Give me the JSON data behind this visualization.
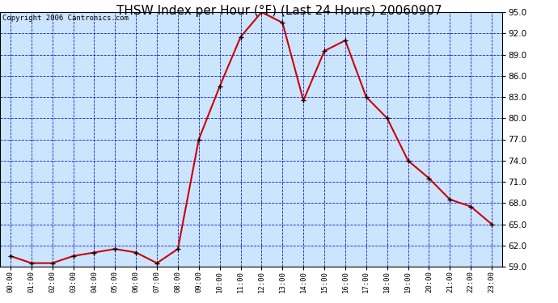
{
  "title": "THSW Index per Hour (°F) (Last 24 Hours) 20060907",
  "copyright": "Copyright 2006 Cantronics.com",
  "x_labels": [
    "00:00",
    "01:00",
    "02:00",
    "03:00",
    "04:00",
    "05:00",
    "06:00",
    "07:00",
    "08:00",
    "09:00",
    "10:00",
    "11:00",
    "12:00",
    "13:00",
    "14:00",
    "15:00",
    "16:00",
    "17:00",
    "18:00",
    "19:00",
    "20:00",
    "21:00",
    "22:00",
    "23:00"
  ],
  "y_values": [
    60.5,
    59.5,
    59.5,
    60.5,
    61.0,
    61.5,
    61.0,
    59.5,
    61.5,
    77.0,
    84.5,
    91.5,
    95.0,
    93.5,
    82.5,
    89.5,
    91.0,
    83.0,
    80.0,
    74.0,
    71.5,
    68.5,
    67.5,
    65.0
  ],
  "ylim_min": 59.0,
  "ylim_max": 95.0,
  "yticks": [
    59.0,
    62.0,
    65.0,
    68.0,
    71.0,
    74.0,
    77.0,
    80.0,
    83.0,
    86.0,
    89.0,
    92.0,
    95.0
  ],
  "line_color": "#cc0000",
  "marker_color": "#000000",
  "bg_color": "#cce5ff",
  "grid_color": "#0000cc",
  "border_color": "#000000",
  "title_fontsize": 11,
  "copyright_fontsize": 6.5
}
